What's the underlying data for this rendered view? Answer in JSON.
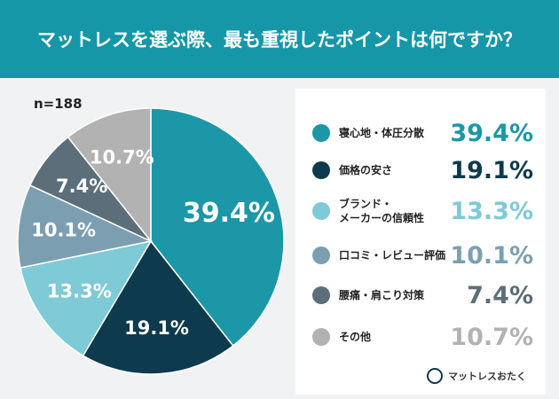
{
  "chart_data": {
    "type": "pie",
    "title": "マットレスを選ぶ際、最も重視したポイントは何ですか？",
    "subtitle": "n=188",
    "categories": [
      "寝心地・体圧分散",
      "価格の安さ",
      "ブランド・\nメーカーの信頼性",
      "口コミ・レビュー評価",
      "腰痛・肩こり対策",
      "その他"
    ],
    "values": [
      39.4,
      19.1,
      13.3,
      10.1,
      7.4,
      10.7
    ],
    "value_labels": [
      "39.4%",
      "19.1%",
      "13.3%",
      "10.1%",
      "7.4%",
      "10.7%"
    ],
    "colors": [
      "#1b97a8",
      "#0e3a4d",
      "#7ecad6",
      "#7b9fb0",
      "#5b6e79",
      "#b2b2b2"
    ],
    "source": "マットレスおたく"
  }
}
